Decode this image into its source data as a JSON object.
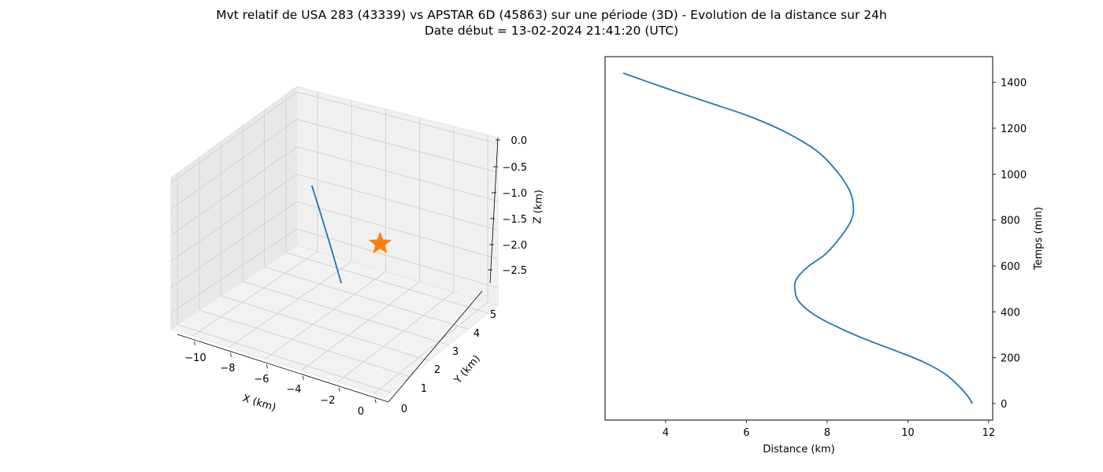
{
  "figure": {
    "title_line1": "Mvt relatif de USA 283 (43339) vs APSTAR 6D (45863) sur une période (3D) - Evolution de la distance sur 24h",
    "title_line2": "Date début = 13-02-2024 21:41:20 (UTC)"
  },
  "colors": {
    "series": "#1f77b4",
    "marker": "#ff7f0e",
    "pane_left": "#e8e8e8",
    "pane_back": "#f0f0f0",
    "pane_floor": "#f2f2f2",
    "grid": "#cfcfcf"
  },
  "chart_data": [
    {
      "type": "line3d",
      "title": "",
      "xlabel": "X (km)",
      "ylabel": "Y (km)",
      "zlabel": "Z (km)",
      "xlim": [
        -11.2,
        0.6
      ],
      "ylim": [
        -0.3,
        5.5
      ],
      "zlim": [
        -2.8,
        0.1
      ],
      "x_ticks": [
        -10,
        -8,
        -6,
        -4,
        -2,
        0
      ],
      "x_tick_labels": [
        "−10",
        "−8",
        "−6",
        "−4",
        "−2",
        "0"
      ],
      "y_ticks": [
        0,
        1,
        2,
        3,
        4,
        5
      ],
      "y_tick_labels": [
        "0",
        "1",
        "2",
        "3",
        "4",
        "5"
      ],
      "z_ticks": [
        0,
        -0.5,
        -1.0,
        -1.5,
        -2.0,
        -2.5
      ],
      "z_tick_labels": [
        "0.0",
        "−0.5",
        "−1.0",
        "−1.5",
        "−2.0",
        "−2.5"
      ],
      "grid": true,
      "series": [
        {
          "x": [
            -8.1,
            -7.0,
            -5.9,
            -4.85
          ],
          "y": [
            3.6,
            3.15,
            2.7,
            2.25
          ],
          "z": [
            -0.78,
            -1.15,
            -1.55,
            -1.92
          ]
        }
      ],
      "markers": [
        {
          "shape": "star",
          "x": 0,
          "y": 0,
          "z": 0
        }
      ]
    },
    {
      "type": "line",
      "title": "",
      "xlabel": "Distance (km)",
      "ylabel": "Temps (min)",
      "xlim": [
        2.5,
        12.1
      ],
      "ylim": [
        -72,
        1512
      ],
      "x_ticks": [
        4,
        6,
        8,
        10,
        12
      ],
      "y_ticks": [
        0,
        200,
        400,
        600,
        800,
        1000,
        1200,
        1400
      ],
      "y_axis_side": "right",
      "grid": false,
      "series": [
        {
          "x": [
            11.6,
            11.4,
            10.95,
            10.4,
            9.7,
            8.95,
            8.3,
            7.7,
            7.3,
            7.2,
            7.25,
            7.55,
            7.95,
            8.35,
            8.6,
            8.65,
            8.55,
            8.25,
            7.75,
            7.0,
            6.1,
            5.1,
            4.0,
            2.95
          ],
          "y": [
            0,
            50,
            125,
            180,
            230,
            280,
            330,
            385,
            445,
            500,
            545,
            600,
            650,
            730,
            800,
            860,
            930,
            1010,
            1100,
            1180,
            1250,
            1310,
            1375,
            1440
          ]
        }
      ]
    }
  ]
}
